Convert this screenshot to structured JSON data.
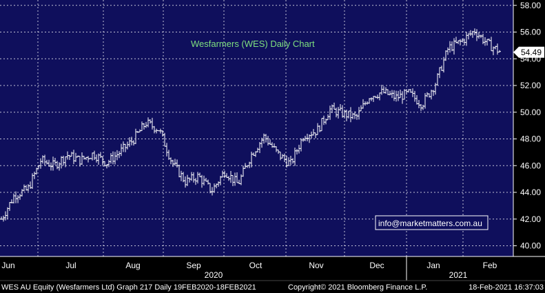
{
  "colors": {
    "plot_background": "#0f0f5c",
    "page_background": "#000000",
    "grid": "#ffffff",
    "bars": "#ffffff",
    "title": "#7fe07f",
    "last_price_box": "#ffffff"
  },
  "title": "Wesfarmers (WES) Daily Chart",
  "watermark": "info@marketmatters.com.au",
  "last_price_label": "54.49",
  "footer": {
    "left": "WES AU Equity (Wesfarmers Ltd) Graph 217  Daily 19FEB2020-18FEB2021",
    "center": "Copyright© 2021 Bloomberg Finance L.P.",
    "right": "18-Feb-2021 16:37:03"
  },
  "chart_data": {
    "type": "ohlc",
    "title": "Wesfarmers (WES) Daily Chart",
    "xlabel": "",
    "ylabel": "",
    "ylim": [
      39.2,
      58.4
    ],
    "yticks": [
      "40.00",
      "42.00",
      "44.00",
      "46.00",
      "48.00",
      "50.00",
      "52.00",
      "54.00",
      "56.00",
      "58.00"
    ],
    "ytick_values": [
      40,
      42,
      44,
      46,
      48,
      50,
      52,
      54,
      56,
      58
    ],
    "month_labels": [
      "Jun",
      "Jul",
      "Aug",
      "Sep",
      "Oct",
      "Nov",
      "Dec",
      "Jan",
      "Feb"
    ],
    "year_labels": [
      "2020",
      "2021"
    ],
    "last_price": 54.49,
    "grid": true,
    "x": [
      "2020-05-29",
      "2020-06-05",
      "2020-06-12",
      "2020-06-19",
      "2020-06-26",
      "2020-07-03",
      "2020-07-10",
      "2020-07-17",
      "2020-07-24",
      "2020-07-31",
      "2020-08-07",
      "2020-08-14",
      "2020-08-21",
      "2020-08-28",
      "2020-09-04",
      "2020-09-11",
      "2020-09-18",
      "2020-09-25",
      "2020-10-02",
      "2020-10-09",
      "2020-10-16",
      "2020-10-23",
      "2020-10-30",
      "2020-11-06",
      "2020-11-13",
      "2020-11-20",
      "2020-11-27",
      "2020-12-04",
      "2020-12-11",
      "2020-12-18",
      "2020-12-25",
      "2021-01-01",
      "2021-01-08",
      "2021-01-15",
      "2021-01-22",
      "2021-01-29",
      "2021-02-05",
      "2021-02-12",
      "2021-02-18"
    ],
    "series": [
      {
        "close": [
          42.0,
          43.8,
          44.2,
          46.4,
          46.0,
          46.8,
          46.4,
          46.9,
          46.2,
          47.0,
          47.9,
          49.2,
          48.7,
          46.2,
          44.8,
          45.2,
          44.1,
          45.6,
          44.6,
          46.8,
          48.2,
          46.9,
          46.1,
          48.3,
          48.6,
          50.2,
          49.9,
          49.6,
          51.2,
          51.5,
          51.1,
          51.4,
          50.6,
          52.1,
          54.8,
          55.3,
          56.1,
          55.1,
          54.49
        ]
      }
    ]
  }
}
